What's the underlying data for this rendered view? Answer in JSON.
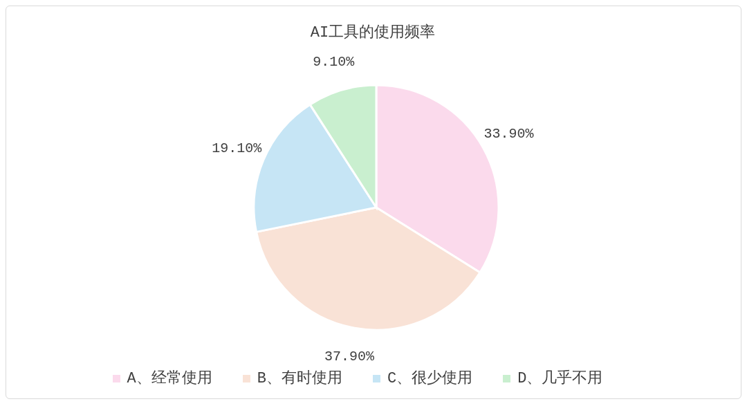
{
  "chart_data": {
    "type": "pie",
    "title": "AI工具的使用频率",
    "categories": [
      "A、经常使用",
      "B、有时使用",
      "C、很少使用",
      "D、几乎不用"
    ],
    "values": [
      33.9,
      37.9,
      19.1,
      9.1
    ],
    "value_labels": [
      "33.90%",
      "37.90%",
      "19.10%",
      "9.10%"
    ],
    "colors": [
      "#fbdaec",
      "#f9e2d6",
      "#c6e5f5",
      "#c9efcf"
    ],
    "legend": "bottom"
  }
}
